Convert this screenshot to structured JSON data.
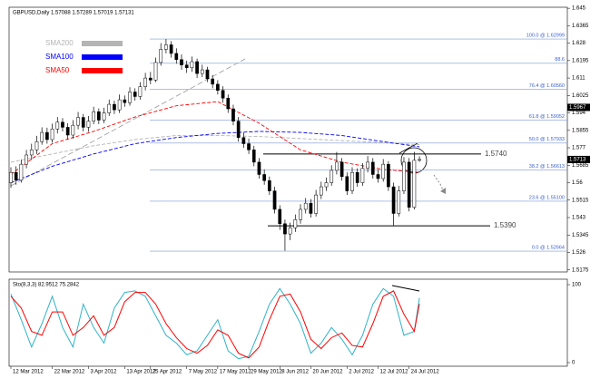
{
  "chart_data": [
    {
      "type": "candlestick",
      "title": "GBPUSD,Daily 1.57088 1.57289 1.57019 1.57131",
      "xlim": [
        -0.35,
        107.6
      ],
      "ylim": [
        1.5165,
        1.6455
      ],
      "yticks": [
        1.645,
        1.6365,
        1.628,
        1.6195,
        1.611,
        1.6025,
        1.594,
        1.5855,
        1.577,
        1.5685,
        1.56,
        1.5515,
        1.543,
        1.5345,
        1.526,
        1.5175
      ],
      "candles": [
        [
          1.56,
          1.5675,
          1.5575,
          1.565
        ],
        [
          1.565,
          1.568,
          1.559,
          1.5612
        ],
        [
          1.5612,
          1.5712,
          1.56,
          1.569
        ],
        [
          1.569,
          1.576,
          1.567,
          1.5735
        ],
        [
          1.5735,
          1.579,
          1.5712,
          1.576
        ],
        [
          1.576,
          1.5828,
          1.574,
          1.58
        ],
        [
          1.58,
          1.587,
          1.5785,
          1.5845
        ],
        [
          1.5845,
          1.5868,
          1.579,
          1.581
        ],
        [
          1.581,
          1.5888,
          1.5795,
          1.5862
        ],
        [
          1.5862,
          1.592,
          1.584,
          1.5895
        ],
        [
          1.5895,
          1.5915,
          1.585,
          1.587
        ],
        [
          1.587,
          1.589,
          1.581,
          1.5832
        ],
        [
          1.5832,
          1.5905,
          1.5815,
          1.588
        ],
        [
          1.588,
          1.5945,
          1.586,
          1.5918
        ],
        [
          1.5918,
          1.5935,
          1.585,
          1.587
        ],
        [
          1.587,
          1.5925,
          1.5848,
          1.59
        ],
        [
          1.59,
          1.597,
          1.5885,
          1.5946
        ],
        [
          1.5946,
          1.5962,
          1.5885,
          1.5905
        ],
        [
          1.5905,
          1.5965,
          1.589,
          1.594
        ],
        [
          1.594,
          1.6005,
          1.5925,
          1.5982
        ],
        [
          1.5982,
          1.6,
          1.5935,
          1.5955
        ],
        [
          1.5955,
          1.603,
          1.594,
          1.6004
        ],
        [
          1.6004,
          1.6025,
          1.597,
          1.599
        ],
        [
          1.599,
          1.6065,
          1.5975,
          1.6042
        ],
        [
          1.6042,
          1.606,
          1.6,
          1.602
        ],
        [
          1.602,
          1.609,
          1.6005,
          1.6068
        ],
        [
          1.6068,
          1.6135,
          1.605,
          1.611
        ],
        [
          1.611,
          1.614,
          1.608,
          1.61
        ],
        [
          1.61,
          1.621,
          1.609,
          1.6186
        ],
        [
          1.6186,
          1.628,
          1.617,
          1.625
        ],
        [
          1.625,
          1.63,
          1.623,
          1.6272
        ],
        [
          1.6272,
          1.629,
          1.621,
          1.623
        ],
        [
          1.623,
          1.6255,
          1.618,
          1.62
        ],
        [
          1.62,
          1.6225,
          1.615,
          1.6174
        ],
        [
          1.6174,
          1.6195,
          1.6135,
          1.616
        ],
        [
          1.616,
          1.6215,
          1.614,
          1.619
        ],
        [
          1.619,
          1.6205,
          1.611,
          1.6132
        ],
        [
          1.6132,
          1.6175,
          1.6115,
          1.615
        ],
        [
          1.615,
          1.6165,
          1.609,
          1.6106
        ],
        [
          1.6106,
          1.6125,
          1.606,
          1.608
        ],
        [
          1.608,
          1.61,
          1.603,
          1.605
        ],
        [
          1.605,
          1.607,
          1.599,
          1.6012
        ],
        [
          1.6012,
          1.603,
          1.594,
          1.596
        ],
        [
          1.596,
          1.598,
          1.588,
          1.59
        ],
        [
          1.59,
          1.592,
          1.58,
          1.582
        ],
        [
          1.582,
          1.5845,
          1.577,
          1.579
        ],
        [
          1.579,
          1.5815,
          1.574,
          1.576
        ],
        [
          1.576,
          1.578,
          1.568,
          1.57
        ],
        [
          1.57,
          1.572,
          1.562,
          1.564
        ],
        [
          1.564,
          1.5665,
          1.559,
          1.561
        ],
        [
          1.561,
          1.563,
          1.554,
          1.556
        ],
        [
          1.556,
          1.558,
          1.545,
          1.547
        ],
        [
          1.547,
          1.549,
          1.537,
          1.54
        ],
        [
          1.54,
          1.542,
          1.5268,
          1.535
        ],
        [
          1.535,
          1.5405,
          1.532,
          1.538
        ],
        [
          1.538,
          1.5445,
          1.536,
          1.542
        ],
        [
          1.542,
          1.5495,
          1.54,
          1.547
        ],
        [
          1.547,
          1.5525,
          1.545,
          1.55
        ],
        [
          1.55,
          1.552,
          1.543,
          1.545
        ],
        [
          1.545,
          1.5565,
          1.5435,
          1.554
        ],
        [
          1.554,
          1.5605,
          1.552,
          1.558
        ],
        [
          1.558,
          1.5625,
          1.556,
          1.56
        ],
        [
          1.56,
          1.5685,
          1.5585,
          1.566
        ],
        [
          1.566,
          1.575,
          1.564,
          1.57
        ],
        [
          1.57,
          1.572,
          1.561,
          1.563
        ],
        [
          1.563,
          1.565,
          1.554,
          1.556
        ],
        [
          1.556,
          1.5675,
          1.5545,
          1.565
        ],
        [
          1.565,
          1.567,
          1.558,
          1.56
        ],
        [
          1.56,
          1.5695,
          1.5585,
          1.567
        ],
        [
          1.567,
          1.573,
          1.565,
          1.57
        ],
        [
          1.57,
          1.572,
          1.562,
          1.564
        ],
        [
          1.564,
          1.5665,
          1.56,
          1.562
        ],
        [
          1.562,
          1.5715,
          1.5605,
          1.569
        ],
        [
          1.569,
          1.5705,
          1.556,
          1.558
        ],
        [
          1.558,
          1.56,
          1.539,
          1.545
        ],
        [
          1.545,
          1.5585,
          1.5435,
          1.556
        ],
        [
          1.556,
          1.5725,
          1.5545,
          1.57
        ],
        [
          1.57,
          1.572,
          1.546,
          1.548
        ],
        [
          1.548,
          1.575,
          1.547,
          1.5709
        ],
        [
          1.57088,
          1.57289,
          1.57019,
          1.57131
        ]
      ],
      "x": [
        0,
        8,
        16,
        24,
        32,
        40,
        48,
        56,
        64,
        72,
        79
      ],
      "series": [
        {
          "name": "SMA200",
          "color": "#b4b4b4",
          "values": [
            1.57,
            1.574,
            1.578,
            1.581,
            1.583,
            1.583,
            1.5825,
            1.5815,
            1.5805,
            1.5795,
            1.5785
          ]
        },
        {
          "name": "SMA100",
          "color": "#0000ff",
          "values": [
            1.56,
            1.568,
            1.574,
            1.579,
            1.582,
            1.584,
            1.585,
            1.5845,
            1.583,
            1.58,
            1.5775
          ]
        },
        {
          "name": "SMA50",
          "color": "#ff0000",
          "values": [
            1.564,
            1.579,
            1.585,
            1.592,
            1.5975,
            1.5995,
            1.589,
            1.576,
            1.57,
            1.5665,
            1.565
          ]
        }
      ],
      "fib_levels": [
        {
          "value": 1.62999,
          "label": "100.0 @ 1.62999"
        },
        {
          "value": 1.61821,
          "label": "88.6"
        },
        {
          "value": 1.6056,
          "label": "76.4 @ 1.60560"
        },
        {
          "value": 1.59052,
          "label": "61.8 @ 1.59052"
        },
        {
          "value": 1.57933,
          "label": "50.0 @ 1.57933"
        },
        {
          "value": 1.56613,
          "label": "38.2 @ 1.56613"
        },
        {
          "value": 1.551,
          "label": "23.6 @ 1.55100"
        },
        {
          "value": 1.52664,
          "label": "0.0 @ 1.52664"
        }
      ],
      "levels": [
        {
          "value": 1.574,
          "label": "1.5740"
        },
        {
          "value": 1.539,
          "label": "1.5390"
        }
      ],
      "price_markers": [
        1.5967,
        {
          "value": 1.57131,
          "label": "1.5713"
        }
      ]
    },
    {
      "type": "line",
      "title": "Sto(8,3,3) 82.9512 75.2842",
      "xlim": [
        -0.35,
        107.6
      ],
      "ylim": [
        0,
        100
      ],
      "yticks": [
        0,
        100
      ],
      "xticks": [
        {
          "value": 0,
          "label": "12 Mar 2012"
        },
        {
          "value": 8,
          "label": "22 Mar 2012"
        },
        {
          "value": 15,
          "label": "3 Apr 2012"
        },
        {
          "value": 22,
          "label": "13 Apr 2012"
        },
        {
          "value": 27,
          "label": "25 Apr 2012"
        },
        {
          "value": 34,
          "label": "7 May 2012"
        },
        {
          "value": 40,
          "label": "17 May 2012"
        },
        {
          "value": 46,
          "label": "29 May 2012"
        },
        {
          "value": 52,
          "label": "8 Jun 2012"
        },
        {
          "value": 58,
          "label": "20 Jun 2012"
        },
        {
          "value": 65,
          "label": "2 Jul 2012"
        },
        {
          "value": 71,
          "label": "12 Jul 2012"
        },
        {
          "value": 77,
          "label": "24 Jul 2012"
        }
      ],
      "x": [
        0,
        2,
        4,
        6,
        8,
        10,
        12,
        14,
        16,
        18,
        20,
        22,
        24,
        26,
        28,
        30,
        32,
        34,
        36,
        38,
        40,
        42,
        44,
        46,
        48,
        50,
        52,
        54,
        56,
        58,
        60,
        62,
        64,
        66,
        68,
        70,
        72,
        74,
        76,
        78,
        79
      ],
      "series": [
        {
          "color": "#2fb3c8",
          "values": [
            88,
            55,
            20,
            50,
            85,
            45,
            20,
            75,
            45,
            25,
            70,
            90,
            92,
            85,
            60,
            35,
            25,
            10,
            15,
            35,
            55,
            15,
            5,
            8,
            40,
            75,
            95,
            75,
            50,
            12,
            25,
            45,
            30,
            10,
            35,
            75,
            95,
            85,
            35,
            40,
            82.9512
          ]
        },
        {
          "color": "#ff0000",
          "values": [
            85,
            70,
            40,
            35,
            65,
            65,
            35,
            45,
            60,
            35,
            45,
            78,
            90,
            90,
            75,
            50,
            32,
            18,
            12,
            22,
            42,
            35,
            12,
            6,
            20,
            55,
            85,
            88,
            65,
            30,
            18,
            32,
            38,
            22,
            20,
            50,
            85,
            92,
            62,
            40,
            75.2842
          ]
        }
      ]
    }
  ]
}
